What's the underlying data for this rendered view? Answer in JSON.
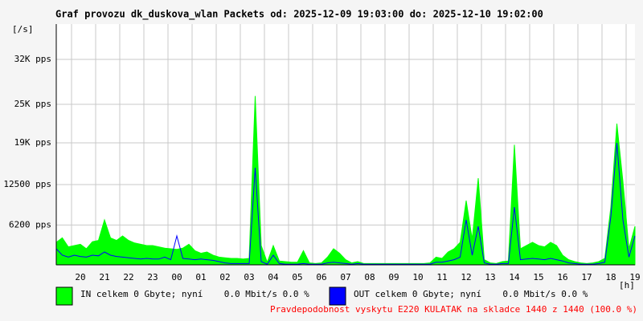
{
  "chart_data": {
    "type": "line",
    "title": "Graf provozu dk_duskova_wlan Packets od: 2025-12-09 19:03:00 do: 2025-12-10 19:02:00",
    "y_label": "[/s]",
    "x_label": "[h]",
    "note": "Pravdepodobnost vyskytu E220 KULATAK na skladce 1440 z 1440 (100.0 %)",
    "grid": true,
    "xlim": [
      0,
      24
    ],
    "xticks": [
      {
        "value": 1,
        "label": "20"
      },
      {
        "value": 2,
        "label": "21"
      },
      {
        "value": 3,
        "label": "22"
      },
      {
        "value": 4,
        "label": "23"
      },
      {
        "value": 5,
        "label": "00"
      },
      {
        "value": 6,
        "label": "01"
      },
      {
        "value": 7,
        "label": "02"
      },
      {
        "value": 8,
        "label": "03"
      },
      {
        "value": 9,
        "label": "04"
      },
      {
        "value": 10,
        "label": "05"
      },
      {
        "value": 11,
        "label": "06"
      },
      {
        "value": 12,
        "label": "07"
      },
      {
        "value": 13,
        "label": "08"
      },
      {
        "value": 14,
        "label": "09"
      },
      {
        "value": 15,
        "label": "10"
      },
      {
        "value": 16,
        "label": "11"
      },
      {
        "value": 17,
        "label": "12"
      },
      {
        "value": 18,
        "label": "13"
      },
      {
        "value": 19,
        "label": "14"
      },
      {
        "value": 20,
        "label": "15"
      },
      {
        "value": 21,
        "label": "16"
      },
      {
        "value": 22,
        "label": "17"
      },
      {
        "value": 23,
        "label": "18"
      },
      {
        "value": 24,
        "label": "19"
      }
    ],
    "ylim": [
      0,
      37500
    ],
    "yticks": [
      {
        "value": 6200,
        "label": "6200 pps"
      },
      {
        "value": 12500,
        "label": "12500 pps"
      },
      {
        "value": 19000,
        "label": "19K pps"
      },
      {
        "value": 25000,
        "label": "25K pps"
      },
      {
        "value": 32000,
        "label": "32K pps"
      }
    ],
    "x": [
      0,
      0.25,
      0.5,
      0.75,
      1,
      1.25,
      1.5,
      1.75,
      2,
      2.25,
      2.5,
      2.75,
      3,
      3.25,
      3.5,
      3.75,
      4,
      4.25,
      4.5,
      4.75,
      5,
      5.25,
      5.5,
      5.75,
      6,
      6.25,
      6.5,
      6.75,
      7,
      7.25,
      7.5,
      7.75,
      8,
      8.25,
      8.5,
      8.75,
      9,
      9.25,
      9.5,
      9.75,
      10,
      10.25,
      10.5,
      10.75,
      11,
      11.25,
      11.5,
      11.75,
      12,
      12.25,
      12.5,
      12.75,
      13,
      13.25,
      13.5,
      13.75,
      14,
      14.25,
      14.5,
      14.75,
      15,
      15.25,
      15.5,
      15.75,
      16,
      16.25,
      16.5,
      16.75,
      17,
      17.25,
      17.5,
      17.75,
      18,
      18.25,
      18.5,
      18.75,
      19,
      19.25,
      19.5,
      19.75,
      20,
      20.25,
      20.5,
      20.75,
      21,
      21.25,
      21.5,
      21.75,
      22,
      22.25,
      22.5,
      22.75,
      23,
      23.25,
      23.5,
      23.75,
      24
    ],
    "series": [
      {
        "name": "IN celkem 0 Gbyte; nyní    0.0 Mbit/s 0.0 %",
        "color": "#00ff00",
        "style": "area",
        "values": [
          3500,
          4200,
          2800,
          3000,
          3200,
          2500,
          3600,
          3800,
          7000,
          4200,
          3800,
          4500,
          3800,
          3400,
          3200,
          3000,
          3000,
          2800,
          2600,
          2500,
          2400,
          2600,
          3200,
          2200,
          1800,
          2000,
          1500,
          1200,
          1100,
          1000,
          1000,
          900,
          1000,
          26300,
          3000,
          400,
          3000,
          600,
          500,
          400,
          400,
          2200,
          300,
          200,
          300,
          1200,
          2500,
          1800,
          800,
          300,
          500,
          200,
          200,
          200,
          200,
          200,
          200,
          200,
          200,
          200,
          200,
          200,
          300,
          1200,
          1000,
          2000,
          2500,
          3500,
          10000,
          4000,
          13500,
          800,
          300,
          200,
          500,
          600,
          18700,
          2500,
          3000,
          3500,
          3000,
          2800,
          3500,
          3000,
          1500,
          800,
          500,
          300,
          200,
          300,
          500,
          1000,
          9000,
          22000,
          13000,
          2500,
          6000
        ]
      },
      {
        "name": "OUT celkem 0 Gbyte; nyní    0.0 Mbit/s 0.0 %",
        "color": "#0000ff",
        "style": "line",
        "values": [
          2500,
          1500,
          1200,
          1500,
          1300,
          1200,
          1500,
          1400,
          2000,
          1500,
          1300,
          1200,
          1100,
          1000,
          900,
          1000,
          900,
          900,
          1200,
          800,
          4500,
          1000,
          900,
          800,
          900,
          800,
          700,
          500,
          300,
          200,
          200,
          200,
          200,
          15100,
          500,
          100,
          1500,
          200,
          100,
          100,
          100,
          200,
          100,
          100,
          100,
          300,
          400,
          300,
          200,
          100,
          200,
          100,
          100,
          100,
          100,
          100,
          100,
          100,
          100,
          100,
          100,
          100,
          100,
          400,
          400,
          600,
          800,
          1200,
          7000,
          1500,
          6000,
          300,
          100,
          100,
          200,
          200,
          9000,
          800,
          900,
          1000,
          900,
          800,
          1000,
          800,
          600,
          300,
          200,
          100,
          100,
          100,
          200,
          400,
          7500,
          19000,
          7000,
          1200,
          4500
        ]
      }
    ]
  }
}
